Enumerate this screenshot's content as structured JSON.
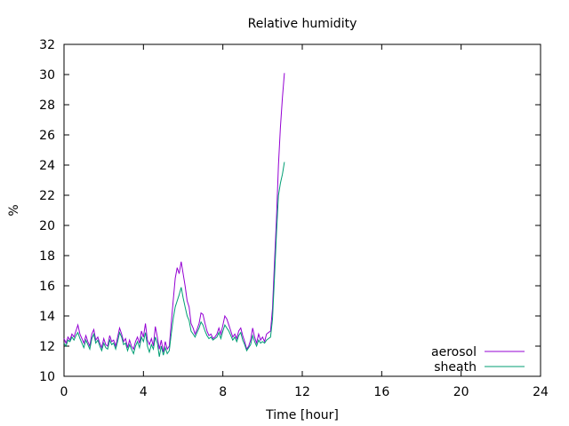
{
  "chart_data": {
    "type": "line",
    "title": "Relative humidity",
    "xlabel": "Time [hour]",
    "ylabel": "%",
    "xlim": [
      0,
      24
    ],
    "ylim": [
      10,
      32
    ],
    "xticks": [
      0,
      4,
      8,
      12,
      16,
      20,
      24
    ],
    "yticks": [
      10,
      12,
      14,
      16,
      18,
      20,
      22,
      24,
      26,
      28,
      30,
      32
    ],
    "grid": false,
    "legend": "bottom-right",
    "x_start": 0,
    "x_step": 0.1,
    "series": [
      {
        "name": "aerosol",
        "color": "#9400d3",
        "values": [
          12.5,
          12.2,
          12.6,
          12.4,
          12.8,
          12.6,
          13.0,
          13.4,
          12.8,
          12.5,
          12.2,
          12.7,
          12.3,
          12.0,
          12.8,
          13.1,
          12.4,
          12.6,
          12.2,
          11.9,
          12.5,
          12.1,
          12.0,
          12.7,
          12.3,
          12.4,
          12.0,
          12.6,
          13.2,
          12.8,
          12.3,
          12.5,
          11.9,
          12.4,
          12.0,
          11.8,
          12.3,
          12.6,
          12.2,
          13.0,
          12.6,
          13.5,
          12.4,
          12.1,
          12.5,
          12.0,
          13.3,
          12.6,
          11.8,
          12.4,
          11.6,
          12.3,
          11.8,
          12.0,
          13.5,
          15.0,
          16.5,
          17.2,
          16.8,
          17.6,
          16.8,
          16.0,
          15.0,
          14.6,
          13.5,
          13.2,
          12.8,
          13.1,
          13.5,
          14.2,
          14.1,
          13.5,
          13.0,
          12.7,
          12.8,
          12.5,
          12.6,
          12.8,
          13.2,
          12.8,
          13.4,
          14.0,
          13.8,
          13.4,
          13.0,
          12.6,
          12.8,
          12.5,
          13.0,
          13.2,
          12.7,
          12.3,
          11.8,
          12.0,
          12.4,
          13.2,
          12.6,
          12.2,
          12.8,
          12.4,
          12.6,
          12.3,
          12.8,
          12.9,
          13.0,
          14.5,
          17.5,
          20.5,
          24.0,
          26.5,
          28.5,
          30.1
        ]
      },
      {
        "name": "sheath",
        "color": "#009e73",
        "values": [
          12.2,
          12.0,
          12.4,
          12.3,
          12.6,
          12.4,
          12.7,
          12.9,
          12.5,
          12.2,
          11.9,
          12.4,
          12.1,
          11.8,
          12.5,
          12.8,
          12.2,
          12.4,
          12.0,
          11.7,
          12.2,
          11.9,
          11.8,
          12.4,
          12.1,
          12.2,
          11.8,
          12.3,
          12.9,
          12.6,
          12.1,
          12.2,
          11.7,
          12.1,
          11.8,
          11.5,
          12.0,
          12.3,
          11.9,
          12.6,
          12.3,
          12.9,
          12.0,
          11.6,
          12.1,
          11.8,
          12.6,
          12.2,
          11.3,
          12.0,
          11.4,
          11.9,
          11.5,
          11.7,
          12.8,
          13.8,
          14.6,
          15.0,
          15.4,
          15.9,
          15.2,
          14.6,
          14.0,
          13.7,
          13.0,
          12.8,
          12.6,
          12.9,
          13.2,
          13.6,
          13.4,
          13.0,
          12.7,
          12.5,
          12.6,
          12.4,
          12.5,
          12.6,
          12.9,
          12.5,
          13.0,
          13.4,
          13.2,
          13.0,
          12.7,
          12.4,
          12.6,
          12.3,
          12.7,
          12.9,
          12.4,
          12.1,
          11.7,
          11.9,
          12.1,
          12.7,
          12.3,
          12.0,
          12.4,
          12.2,
          12.3,
          12.2,
          12.4,
          12.5,
          12.6,
          13.8,
          16.5,
          19.5,
          22.0,
          22.8,
          23.4,
          24.2
        ]
      }
    ]
  }
}
